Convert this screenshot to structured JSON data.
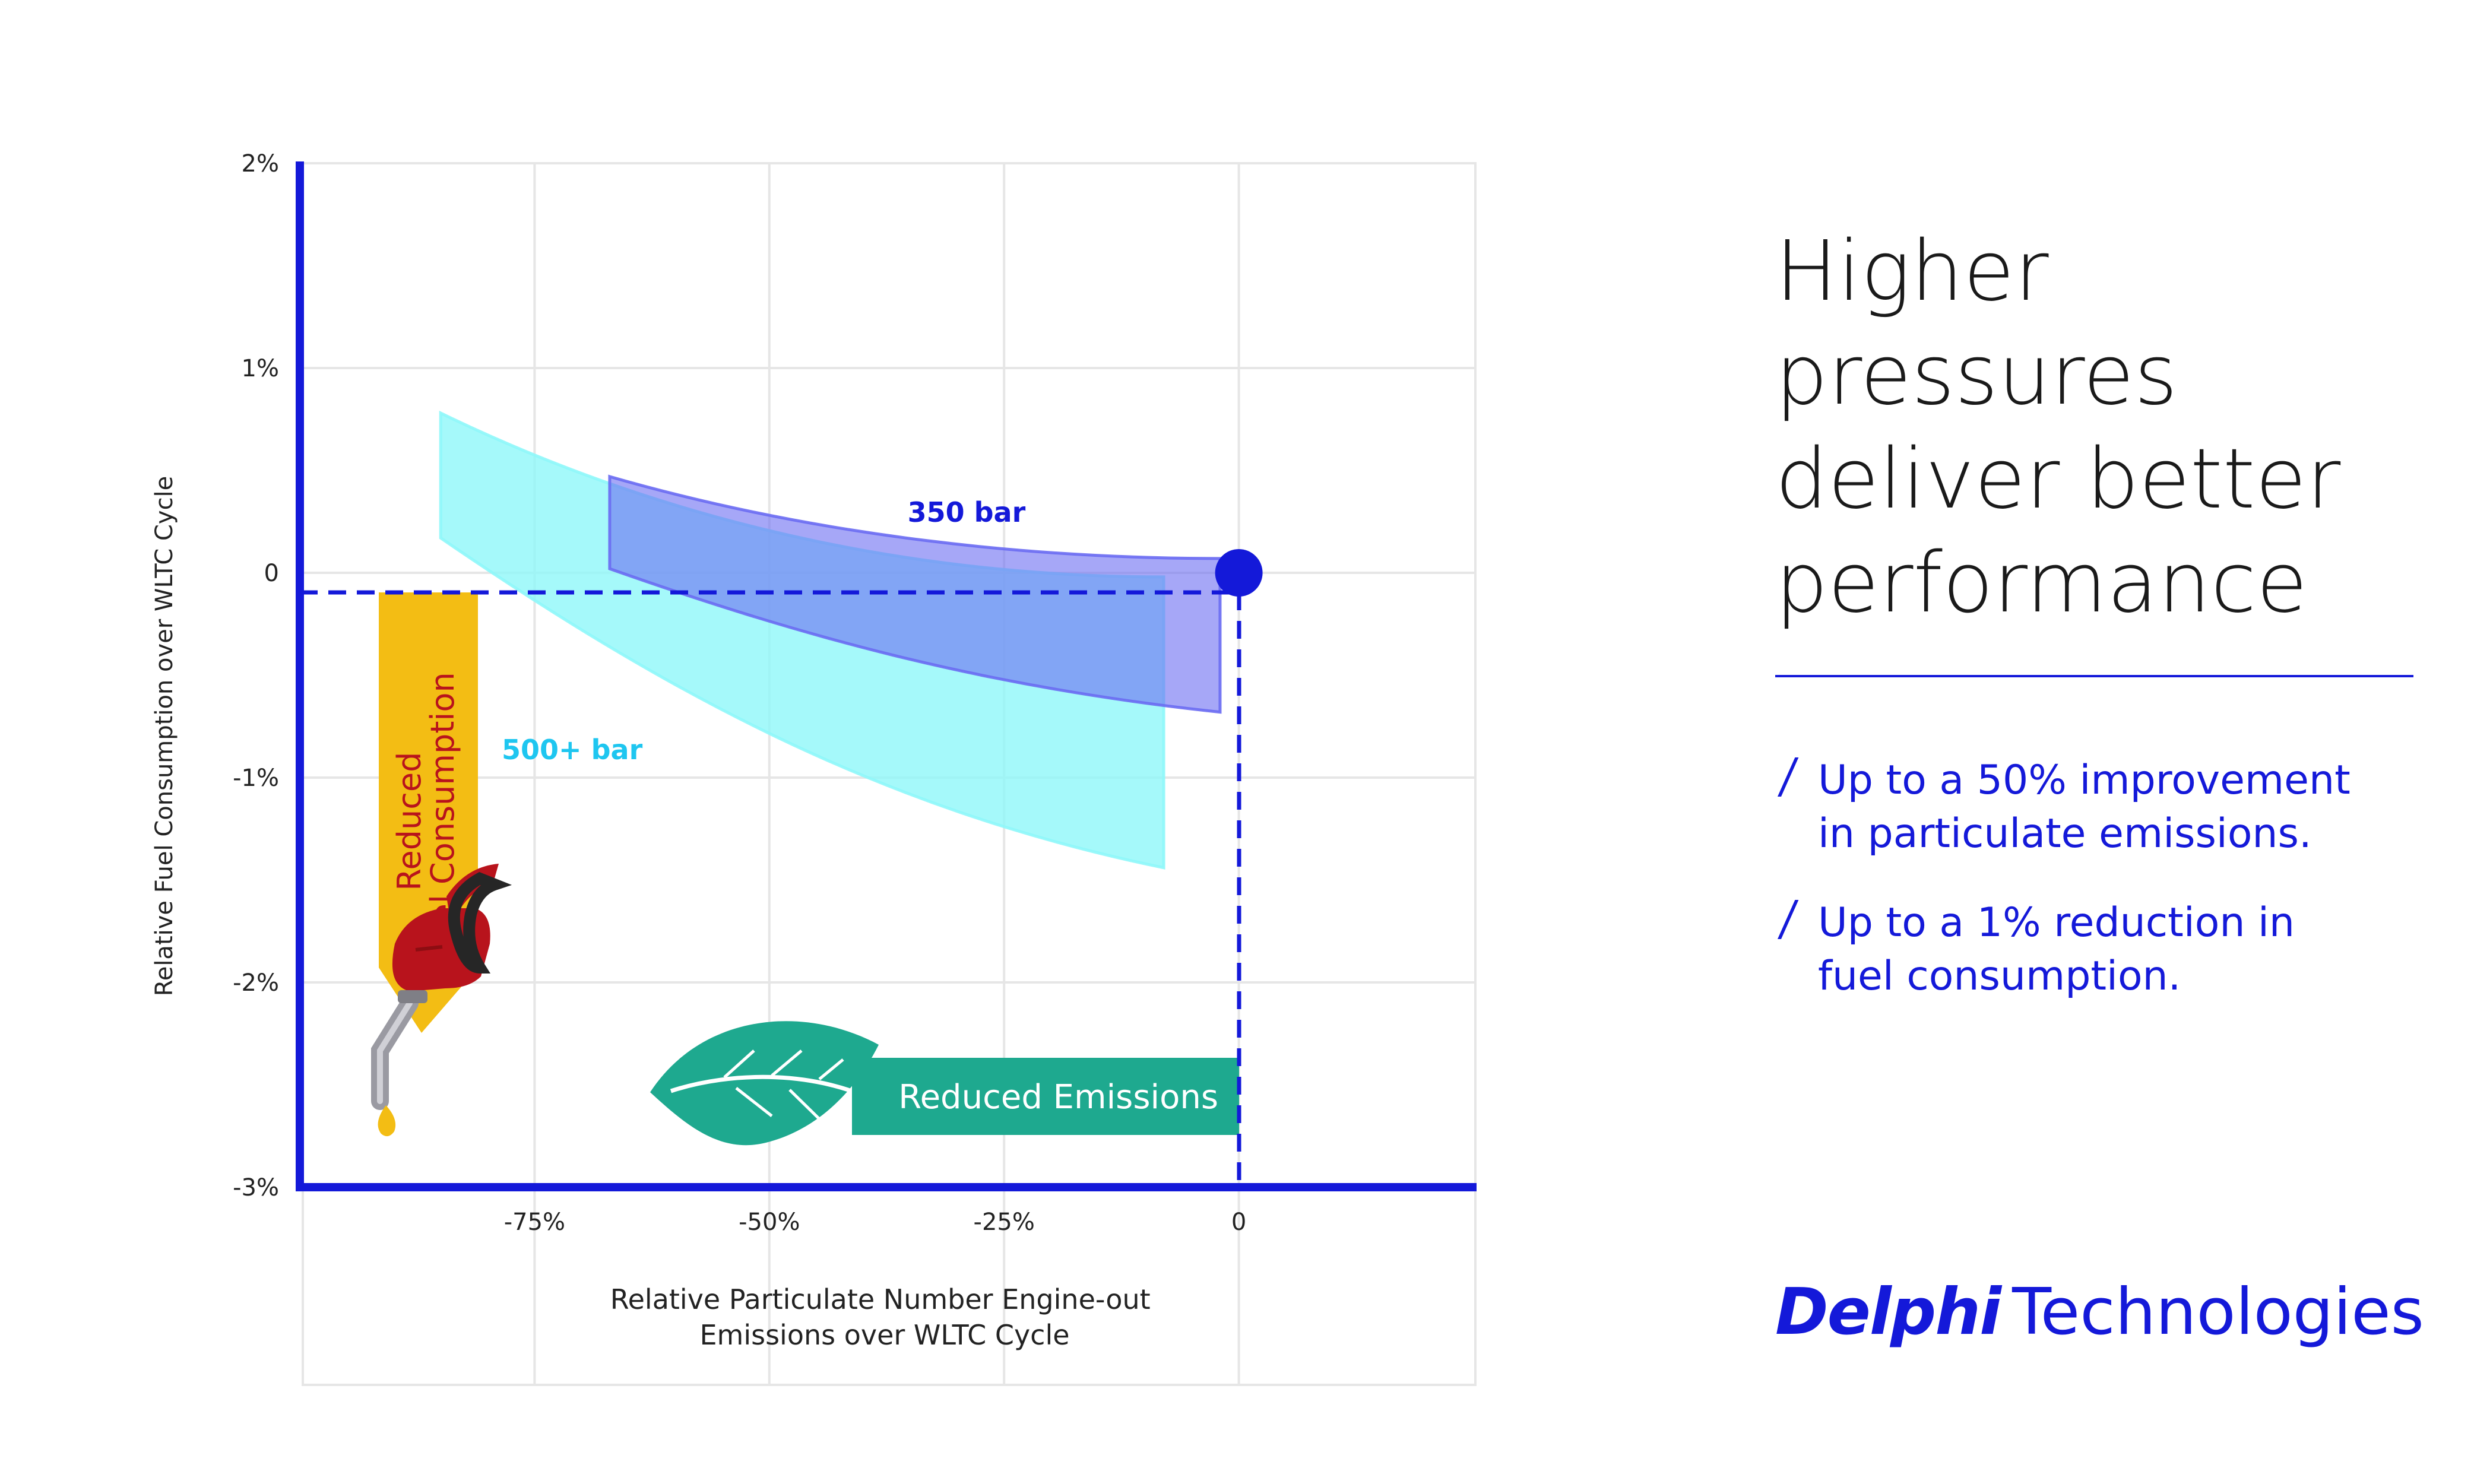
{
  "chart_data": {
    "type": "area",
    "title": "",
    "xlabel": [
      "Relative Particulate Number Engine-out",
      "Emissions over WLTC Cycle"
    ],
    "ylabel": "Relative Fuel Consumption over WLTC Cycle",
    "xlim": [
      -100,
      25
    ],
    "ylim": [
      -3,
      2
    ],
    "x_ticks": [
      {
        "value": -75,
        "label": "-75%"
      },
      {
        "value": -50,
        "label": "-50%"
      },
      {
        "value": -25,
        "label": "-25%"
      },
      {
        "value": 0,
        "label": "0"
      }
    ],
    "y_ticks": [
      {
        "value": 2,
        "label": "2%"
      },
      {
        "value": 1,
        "label": "1%"
      },
      {
        "value": 0,
        "label": "0"
      },
      {
        "value": -1,
        "label": "-1%"
      },
      {
        "value": -2,
        "label": "-2%"
      },
      {
        "value": -3,
        "label": "-3%"
      }
    ],
    "grid": true,
    "series": [
      {
        "name": "500+ bar",
        "color": "#8ff7f9",
        "label_color": "#1ec6f0",
        "x_start": -85,
        "x_end": -8,
        "upper": {
          "start": 0.78,
          "end": -0.02
        },
        "lower": {
          "start": 0.17,
          "end": -1.44
        }
      },
      {
        "name": "350 bar",
        "color": "#6a6cf2",
        "label_color": "#1419d9",
        "x_start": -67,
        "x_end": -2,
        "upper": {
          "start": 0.47,
          "end": 0.07
        },
        "lower": {
          "start": 0.02,
          "end": -0.68
        }
      }
    ],
    "reference_point": {
      "x": 0,
      "y": 0
    },
    "annotations": {
      "fuel_arrow": [
        "Reduced",
        "Fuel Consumption"
      ],
      "emissions_arrow": "Reduced Emissions"
    }
  },
  "headline": [
    "Higher",
    "pressures",
    "deliver better",
    "performance"
  ],
  "bullets": [
    {
      "lines": [
        "Up to a 50% improvement",
        "in particulate emissions."
      ]
    },
    {
      "lines": [
        "Up to a 1% reduction in",
        "fuel consumption."
      ]
    }
  ],
  "brand": {
    "bold": "Delphi",
    "light": "Technologies"
  },
  "colors": {
    "brand_blue": "#1419d9",
    "arrow_yellow": "#f3bd14",
    "leaf_green": "#1ea98f",
    "fuel_red": "#b8131c"
  }
}
